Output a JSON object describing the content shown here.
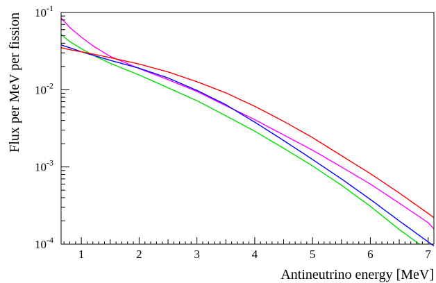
{
  "chart_data": {
    "type": "line",
    "title": "",
    "xlabel": "Antineutrino energy [MeV]",
    "ylabel": "Flux per MeV per fission",
    "xlim": [
      0.65,
      7.1
    ],
    "ylim": [
      0.0001,
      0.1
    ],
    "y_scale": "log",
    "grid": false,
    "legend": "none",
    "x_ticks": [
      "1",
      "2",
      "3",
      "4",
      "5",
      "6",
      "7"
    ],
    "y_ticks": [
      {
        "base": "10",
        "exp": "-4",
        "value": 0.0001
      },
      {
        "base": "10",
        "exp": "-3",
        "value": 0.001
      },
      {
        "base": "10",
        "exp": "-2",
        "value": 0.01
      },
      {
        "base": "10",
        "exp": "-1",
        "value": 0.1
      }
    ],
    "series": [
      {
        "color": "#ff00ff",
        "x": [
          0.65,
          0.8,
          1.0,
          1.2,
          1.5,
          2.0,
          2.5,
          3.0,
          3.5,
          4.0,
          4.5,
          5.0,
          5.5,
          6.0,
          6.5,
          7.0,
          7.1
        ],
        "y": [
          0.085,
          0.064,
          0.048,
          0.037,
          0.027,
          0.0188,
          0.0135,
          0.0095,
          0.0062,
          0.0041,
          0.0026,
          0.00165,
          0.001,
          0.0006,
          0.00034,
          0.00019,
          0.000158
        ]
      },
      {
        "color": "#00dd00",
        "x": [
          0.65,
          0.8,
          1.0,
          1.2,
          1.5,
          2.0,
          2.5,
          3.0,
          3.5,
          4.0,
          4.5,
          5.0,
          5.5,
          6.0,
          6.5,
          6.85
        ],
        "y": [
          0.052,
          0.042,
          0.034,
          0.028,
          0.022,
          0.0155,
          0.0106,
          0.0072,
          0.0046,
          0.0029,
          0.00175,
          0.00103,
          0.00058,
          0.00031,
          0.000155,
          0.0001
        ]
      },
      {
        "color": "#0000ff",
        "x": [
          0.65,
          0.8,
          1.0,
          1.2,
          1.5,
          2.0,
          2.5,
          3.0,
          3.5,
          4.0,
          4.5,
          5.0,
          5.5,
          6.0,
          6.5,
          7.0,
          7.1
        ],
        "y": [
          0.038,
          0.035,
          0.031,
          0.028,
          0.024,
          0.019,
          0.0142,
          0.0098,
          0.0064,
          0.0038,
          0.0022,
          0.00125,
          0.0007,
          0.00038,
          0.0002,
          0.000107,
          9.5e-05
        ]
      },
      {
        "color": "#ff0000",
        "x": [
          0.65,
          0.8,
          1.0,
          1.2,
          1.5,
          2.0,
          2.5,
          3.0,
          3.5,
          4.0,
          4.5,
          5.0,
          5.5,
          6.0,
          6.5,
          7.0,
          7.1
        ],
        "y": [
          0.035,
          0.033,
          0.031,
          0.029,
          0.026,
          0.0215,
          0.017,
          0.0127,
          0.0091,
          0.0061,
          0.0039,
          0.0024,
          0.0014,
          0.00082,
          0.00046,
          0.00025,
          0.00022
        ]
      }
    ]
  }
}
